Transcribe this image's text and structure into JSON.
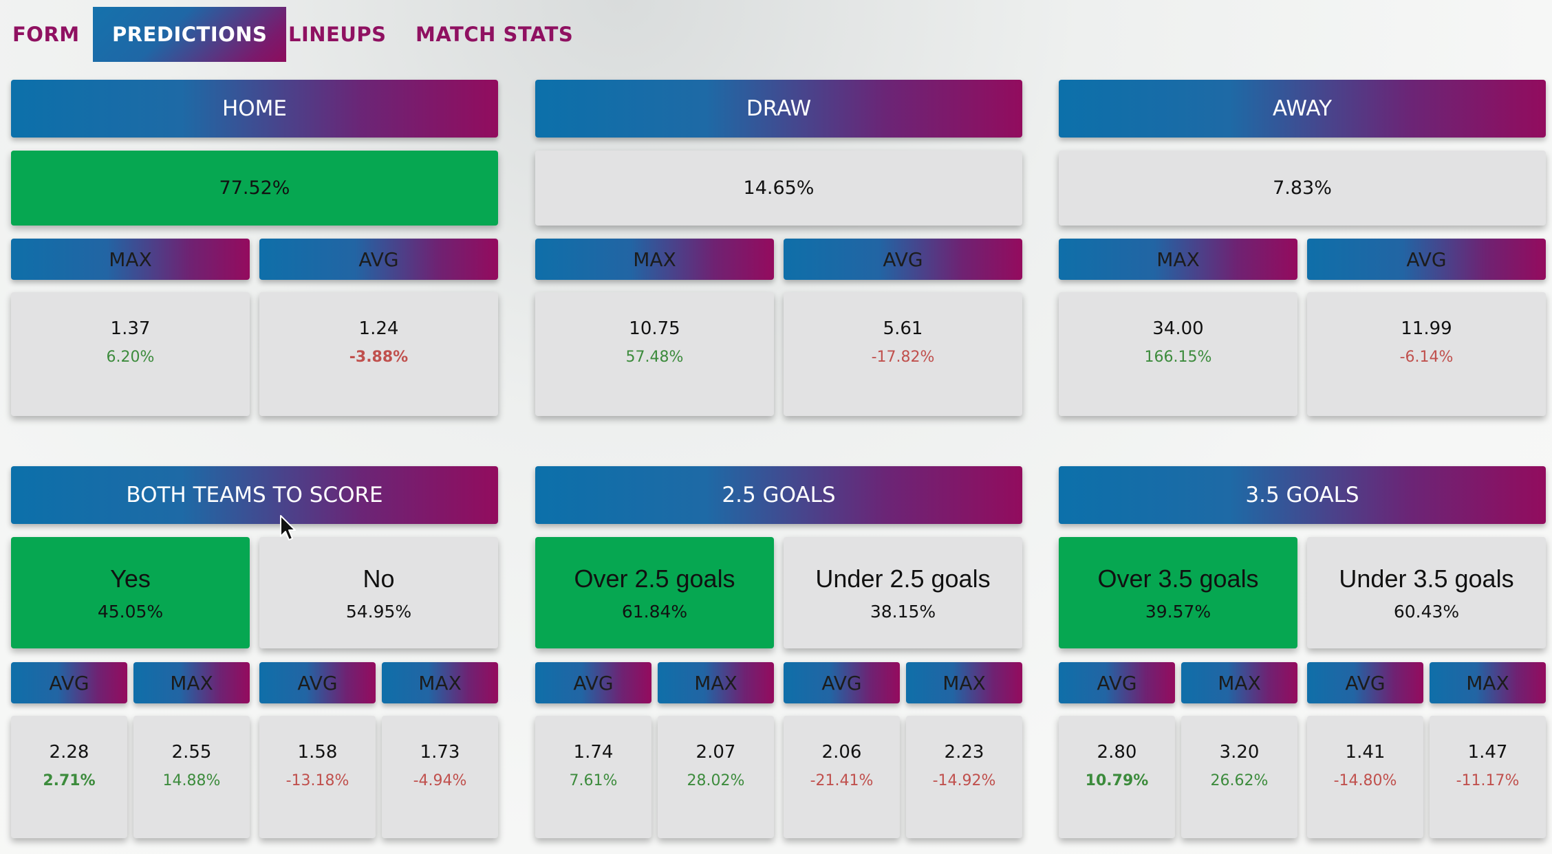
{
  "tabs": {
    "form": "FORM",
    "predictions": "PREDICTIONS",
    "lineups": "LINEUPS",
    "match_stats": "MATCH STATS"
  },
  "result": {
    "home": {
      "label": "HOME",
      "pct": "77.52%",
      "max_label": "MAX",
      "avg_label": "AVG",
      "max": {
        "odds": "1.37",
        "diff": "6.20%"
      },
      "avg": {
        "odds": "1.24",
        "diff": "-3.88%"
      }
    },
    "draw": {
      "label": "DRAW",
      "pct": "14.65%",
      "max_label": "MAX",
      "avg_label": "AVG",
      "max": {
        "odds": "10.75",
        "diff": "57.48%"
      },
      "avg": {
        "odds": "5.61",
        "diff": "-17.82%"
      }
    },
    "away": {
      "label": "AWAY",
      "pct": "7.83%",
      "max_label": "MAX",
      "avg_label": "AVG",
      "max": {
        "odds": "34.00",
        "diff": "166.15%"
      },
      "avg": {
        "odds": "11.99",
        "diff": "-6.14%"
      }
    }
  },
  "btts": {
    "label": "BOTH TEAMS TO SCORE",
    "yes": {
      "label": "Yes",
      "pct": "45.05%",
      "avg": {
        "label": "AVG",
        "odds": "2.28",
        "diff": "2.71%"
      },
      "max": {
        "label": "MAX",
        "odds": "2.55",
        "diff": "14.88%"
      }
    },
    "no": {
      "label": "No",
      "pct": "54.95%",
      "avg": {
        "label": "AVG",
        "odds": "1.58",
        "diff": "-13.18%"
      },
      "max": {
        "label": "MAX",
        "odds": "1.73",
        "diff": "-4.94%"
      }
    }
  },
  "goals25": {
    "label": "2.5 GOALS",
    "over": {
      "label": "Over 2.5 goals",
      "pct": "61.84%",
      "avg": {
        "label": "AVG",
        "odds": "1.74",
        "diff": "7.61%"
      },
      "max": {
        "label": "MAX",
        "odds": "2.07",
        "diff": "28.02%"
      }
    },
    "under": {
      "label": "Under 2.5 goals",
      "pct": "38.15%",
      "avg": {
        "label": "AVG",
        "odds": "2.06",
        "diff": "-21.41%"
      },
      "max": {
        "label": "MAX",
        "odds": "2.23",
        "diff": "-14.92%"
      }
    }
  },
  "goals35": {
    "label": "3.5 GOALS",
    "over": {
      "label": "Over 3.5 goals",
      "pct": "39.57%",
      "avg": {
        "label": "AVG",
        "odds": "2.80",
        "diff": "10.79%"
      },
      "max": {
        "label": "MAX",
        "odds": "3.20",
        "diff": "26.62%"
      }
    },
    "under": {
      "label": "Under 3.5 goals",
      "pct": "60.43%",
      "avg": {
        "label": "AVG",
        "odds": "1.41",
        "diff": "-14.80%"
      },
      "max": {
        "label": "MAX",
        "odds": "1.47",
        "diff": "-11.17%"
      }
    }
  },
  "colors": {
    "highlight_green": "#06a751",
    "positive": "#3c8b3c",
    "negative": "#c0504d",
    "tab_text": "#8f1161",
    "gradient_start": "#0c70aa",
    "gradient_end": "#920c5e"
  }
}
